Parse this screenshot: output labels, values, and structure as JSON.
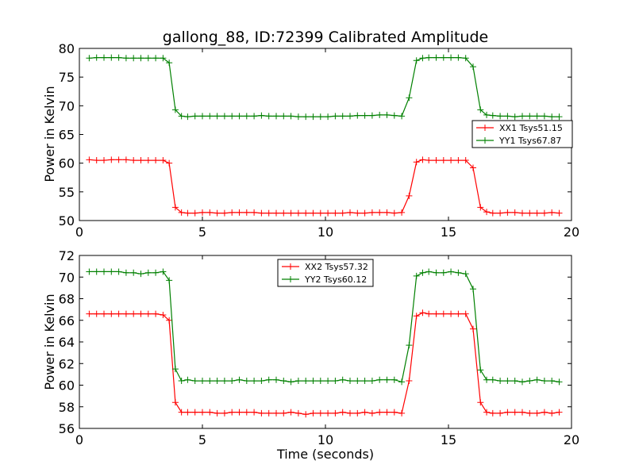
{
  "figure": {
    "title": "gallong_88, ID:72399 Calibrated Amplitude"
  },
  "chart_data": [
    {
      "type": "line",
      "title": "gallong_88, ID:72399 Calibrated Amplitude",
      "xlabel": "",
      "ylabel": "Power in Kelvin",
      "xlim": [
        0,
        20
      ],
      "ylim": [
        50,
        80
      ],
      "xticks": [
        0,
        5,
        10,
        15,
        20
      ],
      "yticks": [
        50,
        55,
        60,
        65,
        70,
        75,
        80
      ],
      "grid": false,
      "legend_position": "center-right",
      "x": [
        0.4,
        0.7,
        1.0,
        1.3,
        1.6,
        1.9,
        2.2,
        2.5,
        2.8,
        3.1,
        3.4,
        3.65,
        3.9,
        4.15,
        4.4,
        4.7,
        5.0,
        5.3,
        5.6,
        5.9,
        6.2,
        6.5,
        6.8,
        7.1,
        7.4,
        7.7,
        8.0,
        8.3,
        8.6,
        8.9,
        9.2,
        9.5,
        9.8,
        10.1,
        10.4,
        10.7,
        11.0,
        11.3,
        11.6,
        11.9,
        12.2,
        12.5,
        12.8,
        13.1,
        13.4,
        13.7,
        13.95,
        14.2,
        14.5,
        14.8,
        15.1,
        15.4,
        15.7,
        16.0,
        16.3,
        16.55,
        16.8,
        17.1,
        17.4,
        17.7,
        18.0,
        18.3,
        18.6,
        18.9,
        19.2,
        19.5
      ],
      "series": [
        {
          "name": "XX1 Tsys51.15",
          "color": "#ff0000",
          "values": [
            60.6,
            60.5,
            60.5,
            60.6,
            60.6,
            60.6,
            60.5,
            60.5,
            60.5,
            60.5,
            60.5,
            60.0,
            52.3,
            51.4,
            51.3,
            51.3,
            51.4,
            51.4,
            51.3,
            51.3,
            51.4,
            51.4,
            51.4,
            51.4,
            51.3,
            51.3,
            51.3,
            51.3,
            51.3,
            51.3,
            51.3,
            51.3,
            51.3,
            51.3,
            51.3,
            51.3,
            51.4,
            51.3,
            51.3,
            51.4,
            51.4,
            51.4,
            51.3,
            51.4,
            54.3,
            60.2,
            60.6,
            60.5,
            60.5,
            60.5,
            60.5,
            60.5,
            60.5,
            59.2,
            52.3,
            51.5,
            51.3,
            51.3,
            51.4,
            51.4,
            51.3,
            51.3,
            51.3,
            51.3,
            51.4,
            51.3
          ]
        },
        {
          "name": "YY1 Tsys67.87",
          "color": "#008000",
          "values": [
            78.3,
            78.4,
            78.4,
            78.4,
            78.4,
            78.3,
            78.3,
            78.3,
            78.3,
            78.3,
            78.3,
            77.5,
            69.3,
            68.2,
            68.1,
            68.2,
            68.2,
            68.2,
            68.2,
            68.2,
            68.2,
            68.2,
            68.2,
            68.2,
            68.3,
            68.2,
            68.2,
            68.2,
            68.2,
            68.1,
            68.1,
            68.1,
            68.1,
            68.1,
            68.2,
            68.2,
            68.2,
            68.3,
            68.3,
            68.3,
            68.4,
            68.4,
            68.3,
            68.2,
            71.4,
            77.9,
            78.3,
            78.4,
            78.4,
            78.4,
            78.4,
            78.4,
            78.3,
            76.8,
            69.3,
            68.4,
            68.3,
            68.2,
            68.2,
            68.1,
            68.2,
            68.2,
            68.2,
            68.2,
            68.1,
            68.1
          ]
        }
      ]
    },
    {
      "type": "line",
      "title": "",
      "xlabel": "Time (seconds)",
      "ylabel": "Power in Kelvin",
      "xlim": [
        0,
        20
      ],
      "ylim": [
        56,
        72
      ],
      "xticks": [
        0,
        5,
        10,
        15,
        20
      ],
      "yticks": [
        56,
        58,
        60,
        62,
        64,
        66,
        68,
        70,
        72
      ],
      "grid": false,
      "legend_position": "top-center",
      "x": [
        0.4,
        0.7,
        1.0,
        1.3,
        1.6,
        1.9,
        2.2,
        2.5,
        2.8,
        3.1,
        3.4,
        3.65,
        3.9,
        4.15,
        4.4,
        4.7,
        5.0,
        5.3,
        5.6,
        5.9,
        6.2,
        6.5,
        6.8,
        7.1,
        7.4,
        7.7,
        8.0,
        8.3,
        8.6,
        8.9,
        9.2,
        9.5,
        9.8,
        10.1,
        10.4,
        10.7,
        11.0,
        11.3,
        11.6,
        11.9,
        12.2,
        12.5,
        12.8,
        13.1,
        13.4,
        13.7,
        13.95,
        14.2,
        14.5,
        14.8,
        15.1,
        15.4,
        15.7,
        16.0,
        16.3,
        16.55,
        16.8,
        17.1,
        17.4,
        17.7,
        18.0,
        18.3,
        18.6,
        18.9,
        19.2,
        19.5
      ],
      "series": [
        {
          "name": "XX2 Tsys57.32",
          "color": "#ff0000",
          "values": [
            66.6,
            66.6,
            66.6,
            66.6,
            66.6,
            66.6,
            66.6,
            66.6,
            66.6,
            66.6,
            66.5,
            66.0,
            58.4,
            57.5,
            57.5,
            57.5,
            57.5,
            57.5,
            57.4,
            57.4,
            57.5,
            57.5,
            57.5,
            57.5,
            57.4,
            57.4,
            57.4,
            57.4,
            57.5,
            57.4,
            57.3,
            57.4,
            57.4,
            57.4,
            57.4,
            57.5,
            57.4,
            57.4,
            57.5,
            57.4,
            57.5,
            57.5,
            57.5,
            57.4,
            60.4,
            66.4,
            66.7,
            66.6,
            66.6,
            66.6,
            66.6,
            66.6,
            66.6,
            65.2,
            58.4,
            57.5,
            57.4,
            57.4,
            57.5,
            57.5,
            57.5,
            57.4,
            57.4,
            57.5,
            57.4,
            57.5
          ]
        },
        {
          "name": "YY2 Tsys60.12",
          "color": "#008000",
          "values": [
            70.5,
            70.5,
            70.5,
            70.5,
            70.5,
            70.4,
            70.4,
            70.3,
            70.4,
            70.4,
            70.5,
            69.7,
            61.5,
            60.4,
            60.5,
            60.4,
            60.4,
            60.4,
            60.4,
            60.4,
            60.4,
            60.5,
            60.4,
            60.4,
            60.4,
            60.5,
            60.5,
            60.4,
            60.3,
            60.4,
            60.4,
            60.4,
            60.4,
            60.4,
            60.4,
            60.5,
            60.4,
            60.4,
            60.4,
            60.4,
            60.5,
            60.5,
            60.5,
            60.3,
            63.7,
            70.1,
            70.4,
            70.5,
            70.4,
            70.4,
            70.5,
            70.4,
            70.3,
            68.9,
            61.4,
            60.5,
            60.5,
            60.4,
            60.4,
            60.4,
            60.3,
            60.4,
            60.5,
            60.4,
            60.4,
            60.3
          ]
        }
      ]
    }
  ]
}
